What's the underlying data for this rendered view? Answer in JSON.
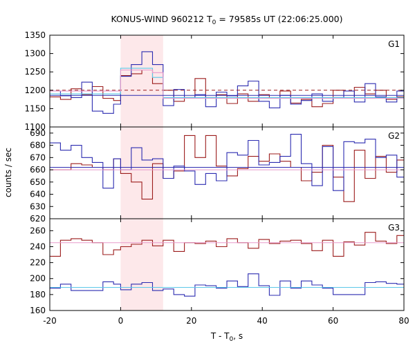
{
  "chart_data": {
    "type": "line",
    "title": "KONUS-WIND 960212 T₀ = 79585s UT (22:06:25.000)",
    "title_parts": {
      "prefix": "KONUS-WIND 960212 T",
      "subscript": "0",
      "suffix": " = 79585s UT (22:06:25.000)"
    },
    "xlabel": "T - T₀, s",
    "xlabel_parts": {
      "prefix": "T - T",
      "subscript": "0",
      "suffix": ", s"
    },
    "ylabel": "counts / sec",
    "xlim": [
      -20,
      80
    ],
    "x_ticks": [
      -20,
      0,
      20,
      40,
      60,
      80
    ],
    "highlight_interval": {
      "x": [
        0,
        12
      ],
      "color": "#fde8ea"
    },
    "colors": {
      "dark_red": "#9b1b1b",
      "dark_blue": "#2b2bb0",
      "light_pink": "#e89acb",
      "light_cyan": "#5bc8e8"
    },
    "panels": [
      {
        "label": "G1",
        "ylim": [
          1100,
          1350
        ],
        "y_ticks": [
          1100,
          1150,
          1200,
          1250,
          1300,
          1350
        ],
        "bin_edges": [
          -20,
          -17,
          -14,
          -11,
          -8,
          -5,
          -2,
          0,
          3,
          6,
          9,
          12,
          15,
          18,
          21,
          24,
          27,
          30,
          33,
          36,
          39,
          42,
          45,
          48,
          51,
          54,
          57,
          60,
          63,
          66,
          69,
          72,
          75,
          78,
          80
        ],
        "series": [
          {
            "color_key": "dark_red",
            "style": "step",
            "values": [
              1182,
              1175,
              1204,
              1188,
              1210,
              1178,
              1172,
              1240,
              1245,
              1255,
              1218,
              1200,
              1170,
              1180,
              1232,
              1180,
              1188,
              1164,
              1190,
              1170,
              1188,
              1178,
              1198,
              1165,
              1175,
              1155,
              1164,
              1200,
              1178,
              1208,
              1190,
              1200,
              1175,
              1182
            ]
          },
          {
            "color_key": "dark_blue",
            "style": "step",
            "values": [
              1198,
              1185,
              1180,
              1222,
              1143,
              1137,
              1162,
              1238,
              1270,
              1305,
              1270,
              1158,
              1202,
              1178,
              1188,
              1155,
              1195,
              1185,
              1212,
              1225,
              1170,
              1152,
              1186,
              1162,
              1172,
              1190,
              1170,
              1180,
              1198,
              1168,
              1218,
              1182,
              1168,
              1198
            ]
          },
          {
            "color_key": "dark_red",
            "style": "hline-dashed",
            "values": [
              1200
            ]
          },
          {
            "color_key": "light_cyan",
            "style": "step",
            "values": [
              1190,
              1190,
              1190,
              1190,
              1190,
              1190,
              1190,
              1260,
              1260,
              1260,
              1235,
              1180,
              1180,
              1180,
              1180,
              1180,
              1180,
              1180,
              1180,
              1180,
              1180,
              1180,
              1180,
              1180,
              1180,
              1180,
              1180,
              1180,
              1180,
              1180,
              1180,
              1180,
              1180,
              1180
            ]
          },
          {
            "color_key": "light_pink",
            "style": "step",
            "values": [
              1198,
              1198,
              1198,
              1198,
              1198,
              1198,
              1198,
              1255,
              1255,
              1255,
              1248,
              1178,
              1178,
              1178,
              1178,
              1178,
              1178,
              1178,
              1178,
              1178,
              1178,
              1178,
              1178,
              1178,
              1178,
              1178,
              1178,
              1178,
              1178,
              1178,
              1178,
              1178,
              1178,
              1178
            ]
          },
          {
            "color_key": "dark_blue",
            "style": "hline",
            "values": [
              1186
            ]
          }
        ]
      },
      {
        "label": "G2",
        "ylim": [
          620,
          695
        ],
        "y_ticks": [
          620,
          630,
          640,
          650,
          660,
          670,
          680,
          690
        ],
        "bin_edges": [
          -20,
          -17,
          -14,
          -11,
          -8,
          -5,
          -2,
          0,
          3,
          6,
          9,
          12,
          15,
          18,
          21,
          24,
          27,
          30,
          33,
          36,
          39,
          42,
          45,
          48,
          51,
          54,
          57,
          60,
          63,
          66,
          69,
          72,
          75,
          78,
          80
        ],
        "series": [
          {
            "color_key": "dark_red",
            "style": "step",
            "values": [
              660,
              660,
              665,
              664,
              662,
              660,
              669,
              657,
              650,
              636,
              665,
              653,
              659,
              688,
              670,
              688,
              663,
              655,
              661,
              671,
              667,
              673,
              667,
              662,
              651,
              658,
              680,
              654,
              634,
              676,
              653,
              671,
              658,
              668
            ]
          },
          {
            "color_key": "dark_blue",
            "style": "step",
            "values": [
              682,
              676,
              680,
              670,
              666,
              645,
              669,
              660,
              678,
              668,
              669,
              653,
              663,
              659,
              648,
              657,
              651,
              674,
              672,
              684,
              664,
              666,
              671,
              689,
              665,
              647,
              679,
              643,
              683,
              682,
              685,
              670,
              672,
              654
            ]
          },
          {
            "color_key": "light_cyan",
            "style": "hline",
            "values": [
              662
            ]
          },
          {
            "color_key": "light_pink",
            "style": "hline",
            "values": [
              660
            ]
          },
          {
            "color_key": "dark_blue",
            "style": "hline",
            "values": [
              662
            ]
          }
        ]
      },
      {
        "label": "G3",
        "ylim": [
          160,
          275
        ],
        "y_ticks": [
          160,
          180,
          200,
          220,
          240,
          260
        ],
        "bin_edges": [
          -20,
          -17,
          -14,
          -11,
          -8,
          -5,
          -2,
          0,
          3,
          6,
          9,
          12,
          15,
          18,
          21,
          24,
          27,
          30,
          33,
          36,
          39,
          42,
          45,
          48,
          51,
          54,
          57,
          60,
          63,
          66,
          69,
          72,
          75,
          78,
          80
        ],
        "series": [
          {
            "color_key": "dark_red",
            "style": "step",
            "values": [
              228,
              248,
              250,
              248,
              245,
              230,
              236,
              240,
              243,
              248,
              241,
              248,
              234,
              245,
              244,
              247,
              240,
              250,
              245,
              238,
              249,
              244,
              247,
              248,
              244,
              235,
              248,
              228,
              246,
              242,
              258,
              247,
              244,
              254
            ]
          },
          {
            "color_key": "dark_blue",
            "style": "step",
            "values": [
              188,
              193,
              185,
              185,
              185,
              196,
              193,
              186,
              193,
              195,
              185,
              187,
              180,
              178,
              192,
              191,
              188,
              197,
              190,
              206,
              191,
              179,
              197,
              188,
              197,
              192,
              188,
              180,
              180,
              180,
              195,
              196,
              194,
              193
            ]
          },
          {
            "color_key": "light_pink",
            "style": "hline",
            "values": [
              245
            ]
          },
          {
            "color_key": "light_cyan",
            "style": "hline",
            "values": [
              189
            ]
          }
        ]
      }
    ]
  }
}
